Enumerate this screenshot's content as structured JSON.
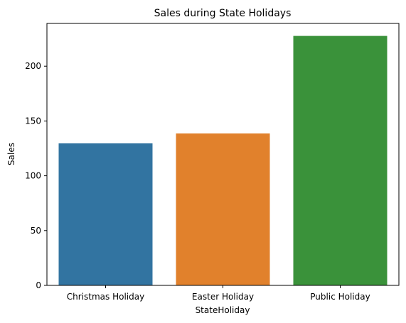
{
  "chart_data": {
    "type": "bar",
    "title": "Sales during State Holidays",
    "xlabel": "StateHoliday",
    "ylabel": "Sales",
    "categories": [
      "Christmas Holiday",
      "Easter Holiday",
      "Public Holiday"
    ],
    "values": [
      129.6,
      138.6,
      227.6
    ],
    "colors": [
      "#3274a1",
      "#e1812c",
      "#3a923a"
    ],
    "yticks": [
      0,
      50,
      100,
      150,
      200
    ],
    "ylim": [
      0,
      239
    ],
    "grid": false,
    "legend": "none"
  }
}
